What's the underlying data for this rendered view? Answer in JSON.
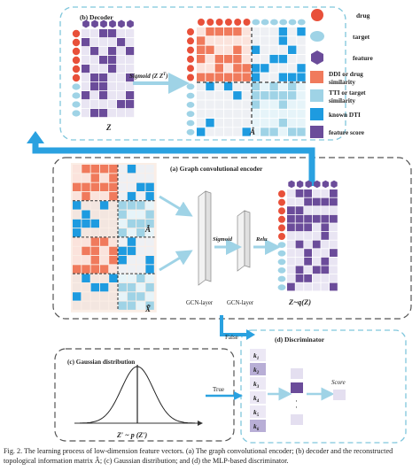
{
  "legend": {
    "drug": "drug",
    "target": "target",
    "feature": "feature",
    "ddi_line1": "DDI or drug",
    "ddi_line2": "similarity",
    "tti_line1": "TTI or target",
    "tti_line2": "similarity",
    "known_dti": "known DTI",
    "feature_score": "feature score"
  },
  "colors": {
    "drug": "#e8503a",
    "target": "#9fd3e6",
    "feature": "#6b4c9a",
    "ddi": "#f07a5c",
    "tti": "#9fd3e6",
    "known_dti": "#1e9be0",
    "feature_score": "#6b4c9a",
    "panel_border": "#7fc6dc",
    "arrow": "#9fd3e6",
    "arrow_main": "#2aa1e0"
  },
  "decoder": {
    "title": "(b) Decoder",
    "sigmoid_label": "Sigmoid (Z Z",
    "sigmoid_sup": "T",
    "sigmoid_close": ")",
    "z_label": "Z",
    "a_hat_label": "Â"
  },
  "encoder": {
    "title": "(a) Graph convolutional encoder",
    "a_tilde_label": "Ã",
    "x_tilde_label": "X̃",
    "sigmoid_label": "Sigmoid",
    "relu_label": "Relu",
    "gcn_layer_1": "GCN-layer",
    "gcn_layer_2": "GCN-layer",
    "z_q_label": "Z~q(Z)"
  },
  "gaussian": {
    "title": "(c) Gaussian distribution",
    "z_p_label": "Z′ ~ p (Z′)"
  },
  "discriminator": {
    "title": "(d) Discriminator",
    "k_labels": [
      "k",
      "k",
      "k",
      "k",
      "k",
      "k"
    ],
    "k_subs": [
      "1",
      "2",
      "3",
      "4",
      "5",
      "6"
    ],
    "score_label": "Score",
    "dots": "·"
  },
  "flow": {
    "false_label": "False",
    "true_label": "True"
  },
  "caption": {
    "text": "Fig. 2. The learning process of low-dimension feature vectors. (a) The graph convolutional encoder; (b) decoder and the reconstructed topological information matrix Â; (c) Gaussian distribution; and (d) the MLP-based discriminator."
  }
}
